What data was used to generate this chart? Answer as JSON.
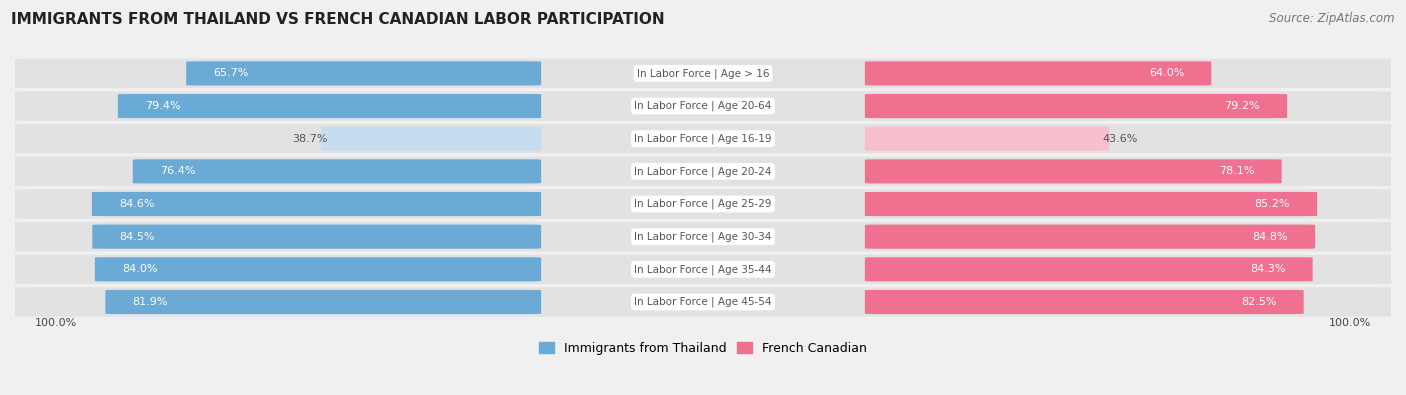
{
  "title": "IMMIGRANTS FROM THAILAND VS FRENCH CANADIAN LABOR PARTICIPATION",
  "source": "Source: ZipAtlas.com",
  "categories": [
    "In Labor Force | Age > 16",
    "In Labor Force | Age 20-64",
    "In Labor Force | Age 16-19",
    "In Labor Force | Age 20-24",
    "In Labor Force | Age 25-29",
    "In Labor Force | Age 30-34",
    "In Labor Force | Age 35-44",
    "In Labor Force | Age 45-54"
  ],
  "thailand_values": [
    65.7,
    79.4,
    38.7,
    76.4,
    84.6,
    84.5,
    84.0,
    81.9
  ],
  "french_values": [
    64.0,
    79.2,
    43.6,
    78.1,
    85.2,
    84.8,
    84.3,
    82.5
  ],
  "thailand_color": "#6aaad4",
  "thailand_color_light": "#c5ddef",
  "french_color": "#f07090",
  "french_color_light": "#f7bfcc",
  "background_color": "#f0f0f0",
  "row_bg_color": "#e2e2e2",
  "label_color_white": "#ffffff",
  "label_color_dark": "#555555",
  "center_label_color": "#555555",
  "axis_label": "100.0%",
  "max_value": 100.0,
  "legend_thailand": "Immigrants from Thailand",
  "legend_french": "French Canadian"
}
